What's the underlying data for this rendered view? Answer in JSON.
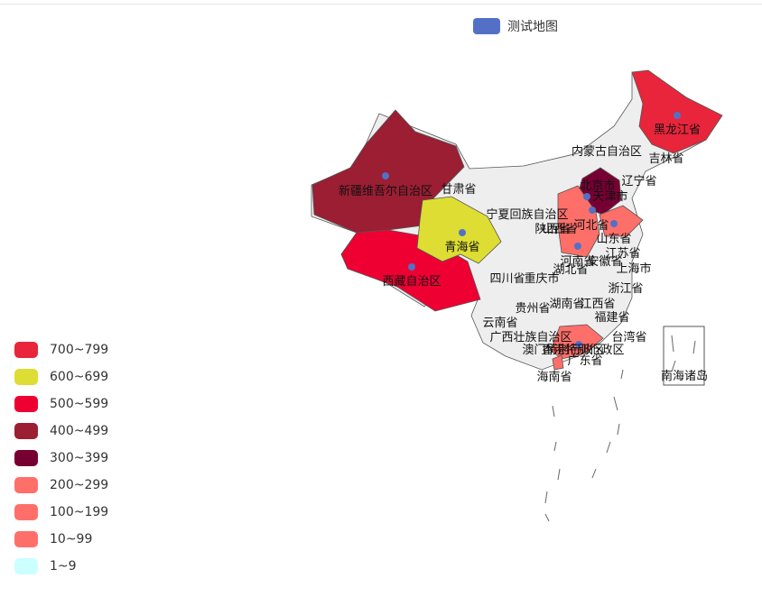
{
  "legend": {
    "series_name": "测试地图",
    "series_color": "#5470c6"
  },
  "visual_map": [
    {
      "label": "700~799",
      "color": "#E8253A"
    },
    {
      "label": "600~699",
      "color": "#DDDD33"
    },
    {
      "label": "500~599",
      "color": "#EE0033"
    },
    {
      "label": "400~499",
      "color": "#9B1E32"
    },
    {
      "label": "300~399",
      "color": "#770033"
    },
    {
      "label": "200~299",
      "color": "#FF6F6A"
    },
    {
      "label": "100~199",
      "color": "#FF6F6A"
    },
    {
      "label": "10~99",
      "color": "#FF6F6A"
    },
    {
      "label": "1~9",
      "color": "#CCFFFF"
    }
  ],
  "map": {
    "default_fill": "#EEEEEE",
    "border_color": "#555555",
    "marker_color": "#5470c6",
    "labels": [
      "黑龙江省",
      "吉林省",
      "辽宁省",
      "内蒙古自治区",
      "北京市",
      "天津市",
      "河北省",
      "山西省",
      "山东省",
      "宁夏回族自治区",
      "陕西省",
      "甘肃省",
      "新疆维吾尔自治区",
      "青海省",
      "西藏自治区",
      "四川省",
      "重庆市",
      "河南省",
      "湖北省",
      "安徽省",
      "江苏省",
      "上海市",
      "浙江省",
      "湖南省",
      "江西省",
      "贵州省",
      "云南省",
      "福建省",
      "广西壮族自治区",
      "广东省",
      "香港特别行政区",
      "澳门特别行政区",
      "台湾省",
      "海南省",
      "南海诸岛"
    ]
  }
}
